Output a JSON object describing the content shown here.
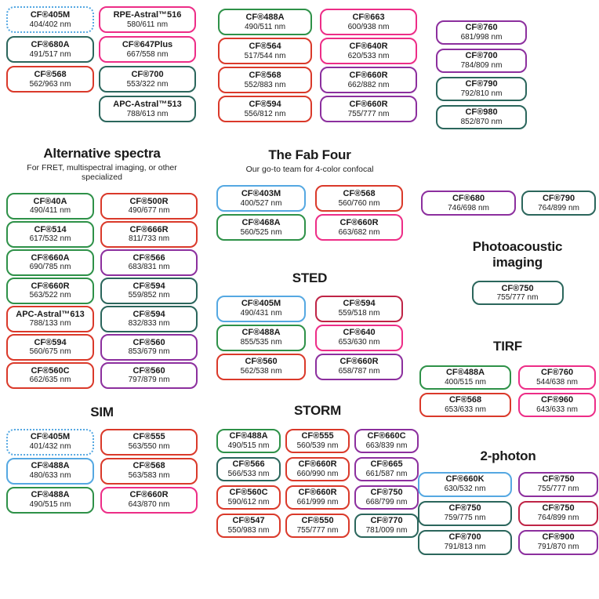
{
  "palette": {
    "blue": "#55a8e2",
    "teal": "#2b665c",
    "green": "#2e9148",
    "red": "#da392a",
    "pink": "#ed2d87",
    "crimson": "#bf2446",
    "purple": "#8c2f9e"
  },
  "groups": [
    {
      "id": "top-a",
      "boxes": [
        {
          "name": "CF®405M",
          "ex_em": "404/402 nm",
          "color": "blue",
          "dotted": true
        },
        {
          "name": "CF®680A",
          "ex_em": "491/517 nm",
          "color": "teal"
        },
        {
          "name": "CF®568",
          "ex_em": "562/963 nm",
          "color": "red"
        }
      ]
    },
    {
      "id": "top-b",
      "boxes": [
        {
          "name": "RPE-Astral™516",
          "ex_em": "580/611 nm",
          "color": "pink"
        },
        {
          "name": "CF®647Plus",
          "ex_em": "667/558 nm",
          "color": "pink"
        },
        {
          "name": "CF®700",
          "ex_em": "553/322 nm",
          "color": "teal"
        },
        {
          "name": "APC-Astral™513",
          "ex_em": "788/613 nm",
          "color": "teal"
        }
      ]
    },
    {
      "id": "top-c",
      "boxes": [
        {
          "name": "CF®488A",
          "ex_em": "490/511 nm",
          "color": "green"
        },
        {
          "name": "CF®564",
          "ex_em": "517/544 nm",
          "color": "red"
        },
        {
          "name": "CF®568",
          "ex_em": "552/883 nm",
          "color": "red"
        },
        {
          "name": "CF®594",
          "ex_em": "556/812 nm",
          "color": "red"
        }
      ]
    },
    {
      "id": "top-d",
      "boxes": [
        {
          "name": "CF®663",
          "ex_em": "600/938 nm",
          "color": "pink"
        },
        {
          "name": "CF®640R",
          "ex_em": "620/533 nm",
          "color": "pink"
        },
        {
          "name": "CF®660R",
          "ex_em": "662/882 nm",
          "color": "purple"
        },
        {
          "name": "CF®660R",
          "ex_em": "755/777 nm",
          "color": "purple"
        }
      ]
    },
    {
      "id": "top-e",
      "boxes": [
        {
          "name": "CF®760",
          "ex_em": "681/998 nm",
          "color": "purple"
        },
        {
          "name": "CF®700",
          "ex_em": "784/809 nm",
          "color": "purple"
        },
        {
          "name": "CF®790",
          "ex_em": "792/810 nm",
          "color": "teal"
        },
        {
          "name": "CF®980",
          "ex_em": "852/870 nm",
          "color": "teal"
        }
      ]
    },
    {
      "id": "alt",
      "title": "Alternative spectra",
      "subtitle": "For FRET, multispectral imaging, or other specialized",
      "boxes": [
        {
          "name": "CF®40A",
          "ex_em": "490/411 nm",
          "color": "green"
        },
        {
          "name": "CF®500R",
          "ex_em": "490/677 nm",
          "color": "red"
        },
        {
          "name": "CF®514",
          "ex_em": "617/532 nm",
          "color": "green"
        },
        {
          "name": "CF®666R",
          "ex_em": "811/733 nm",
          "color": "red"
        },
        {
          "name": "CF®660A",
          "ex_em": "690/785 nm",
          "color": "green"
        },
        {
          "name": "CF®566",
          "ex_em": "683/831 nm",
          "color": "purple"
        },
        {
          "name": "CF®660R",
          "ex_em": "563/522 nm",
          "color": "green"
        },
        {
          "name": "CF®594",
          "ex_em": "559/852 nm",
          "color": "teal"
        },
        {
          "name": "APC-Astral™613",
          "ex_em": "788/133 nm",
          "color": "red"
        },
        {
          "name": "CF®594",
          "ex_em": "832/833 nm",
          "color": "teal"
        },
        {
          "name": "CF®594",
          "ex_em": "560/675 nm",
          "color": "red"
        },
        {
          "name": "CF®560",
          "ex_em": "853/679 nm",
          "color": "purple"
        },
        {
          "name": "CF®560C",
          "ex_em": "662/635 nm",
          "color": "red"
        },
        {
          "name": "CF®560",
          "ex_em": "797/879 nm",
          "color": "purple"
        }
      ]
    },
    {
      "id": "fab",
      "title": "The Fab Four",
      "subtitle": "Our go-to team for 4-color confocal",
      "boxes": [
        {
          "name": "CF®403M",
          "ex_em": "400/527 nm",
          "color": "blue"
        },
        {
          "name": "CF®568",
          "ex_em": "560/760 nm",
          "color": "red"
        },
        {
          "name": "CF®468A",
          "ex_em": "560/525 nm",
          "color": "green"
        },
        {
          "name": "CF®660R",
          "ex_em": "663/682 nm",
          "color": "pink"
        }
      ]
    },
    {
      "id": "sted",
      "title": "STED",
      "boxes": [
        {
          "name": "CF®405M",
          "ex_em": "490/431 nm",
          "color": "blue"
        },
        {
          "name": "CF®594",
          "ex_em": "559/518 nm",
          "color": "crimson"
        },
        {
          "name": "CF®488A",
          "ex_em": "855/535 nm",
          "color": "green"
        },
        {
          "name": "CF®640",
          "ex_em": "653/630 nm",
          "color": "pink"
        },
        {
          "name": "CF®560",
          "ex_em": "562/538 nm",
          "color": "red"
        },
        {
          "name": "CF®660R",
          "ex_em": "658/787 nm",
          "color": "purple"
        }
      ]
    },
    {
      "id": "sim",
      "title": "SIM",
      "boxes": [
        {
          "name": "CF®405M",
          "ex_em": "401/432 nm",
          "color": "blue",
          "dotted": true
        },
        {
          "name": "CF®555",
          "ex_em": "563/550 nm",
          "color": "red"
        },
        {
          "name": "CF®488A",
          "ex_em": "480/633 nm",
          "color": "blue"
        },
        {
          "name": "CF®568",
          "ex_em": "563/583 nm",
          "color": "red"
        },
        {
          "name": "CF®488A",
          "ex_em": "490/515 nm",
          "color": "green"
        },
        {
          "name": "CF®660R",
          "ex_em": "643/870 nm",
          "color": "pink"
        }
      ]
    },
    {
      "id": "storm",
      "title": "STORM",
      "boxes": [
        {
          "name": "CF®488A",
          "ex_em": "490/515 nm",
          "color": "green"
        },
        {
          "name": "CF®555",
          "ex_em": "560/539 nm",
          "color": "red"
        },
        {
          "name": "CF®660C",
          "ex_em": "663/839 nm",
          "color": "purple"
        },
        {
          "name": "CF®566",
          "ex_em": "566/533 nm",
          "color": "teal"
        },
        {
          "name": "CF®660R",
          "ex_em": "660/990 nm",
          "color": "red"
        },
        {
          "name": "CF®665",
          "ex_em": "661/587 nm",
          "color": "purple"
        },
        {
          "name": "CF®560C",
          "ex_em": "590/612 nm",
          "color": "red"
        },
        {
          "name": "CF®660R",
          "ex_em": "661/999 nm",
          "color": "red"
        },
        {
          "name": "CF®750",
          "ex_em": "668/799 nm",
          "color": "purple"
        },
        {
          "name": "CF®547",
          "ex_em": "550/983 nm",
          "color": "red"
        },
        {
          "name": "CF®550",
          "ex_em": "755/777 nm",
          "color": "red"
        },
        {
          "name": "CF®770",
          "ex_em": "781/009 nm",
          "color": "teal"
        }
      ]
    },
    {
      "id": "pair",
      "boxes": [
        {
          "name": "CF®680",
          "ex_em": "746/698 nm",
          "color": "purple"
        },
        {
          "name": "CF®790",
          "ex_em": "764/899 nm",
          "color": "teal"
        }
      ]
    },
    {
      "id": "photo",
      "title": "Photoacoustic imaging",
      "boxes": [
        {
          "name": "CF®750",
          "ex_em": "755/777 nm",
          "color": "teal"
        }
      ]
    },
    {
      "id": "tirf",
      "title": "TIRF",
      "boxes": [
        {
          "name": "CF®488A",
          "ex_em": "400/515 nm",
          "color": "green"
        },
        {
          "name": "CF®760",
          "ex_em": "544/638 nm",
          "color": "pink"
        },
        {
          "name": "CF®568",
          "ex_em": "653/633 nm",
          "color": "red"
        },
        {
          "name": "CF®960",
          "ex_em": "643/633 nm",
          "color": "pink"
        }
      ]
    },
    {
      "id": "twop",
      "title": "2-photon",
      "boxes": [
        {
          "name": "CF®660K",
          "ex_em": "630/532 nm",
          "color": "blue"
        },
        {
          "name": "CF®750",
          "ex_em": "755/777 nm",
          "color": "purple"
        },
        {
          "name": "CF®750",
          "ex_em": "759/775 nm",
          "color": "teal"
        },
        {
          "name": "CF®750",
          "ex_em": "764/899 nm",
          "color": "crimson"
        },
        {
          "name": "CF®700",
          "ex_em": "791/813 nm",
          "color": "teal"
        },
        {
          "name": "CF®900",
          "ex_em": "791/870 nm",
          "color": "purple"
        }
      ]
    }
  ]
}
